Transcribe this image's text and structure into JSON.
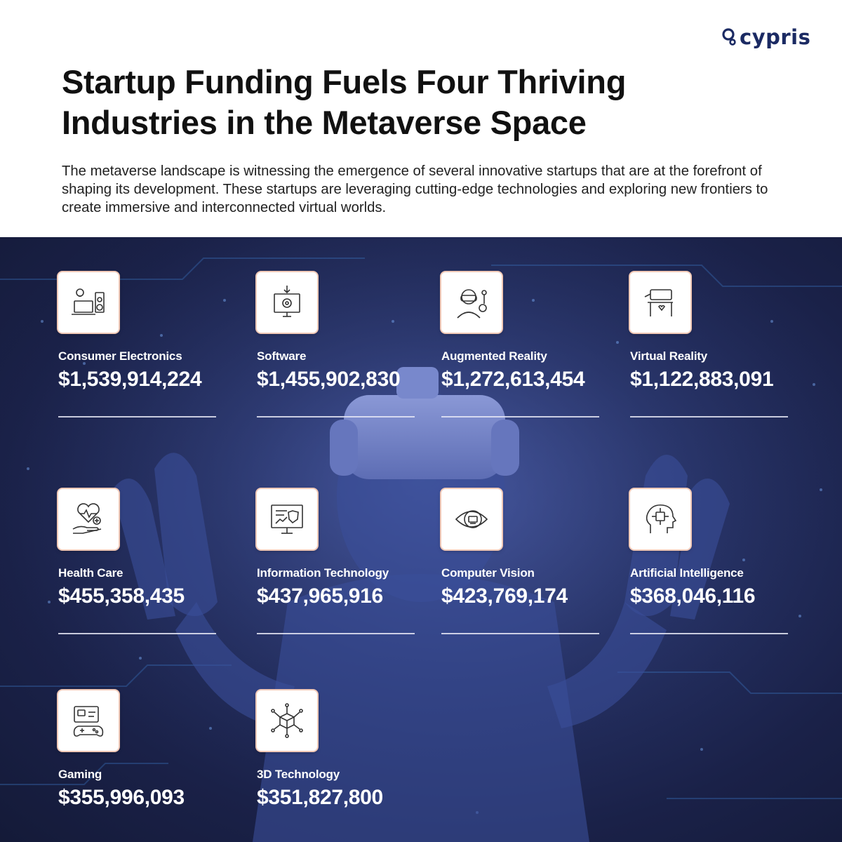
{
  "brand": {
    "name": "cypris",
    "logo_icon": "cypris-logo-icon",
    "color": "#1b2a63"
  },
  "title": "Startup Funding Fuels Four Thriving Industries in the Metaverse Space",
  "intro": "The metaverse landscape is witnessing the emergence of several innovative startups that are at the forefront of shaping its development. These startups are leveraging cutting-edge technologies and exploring new frontiers to create immersive and interconnected virtual worlds.",
  "industries": [
    {
      "name": "Consumer Electronics",
      "amount": "$1,539,914,224",
      "icon": "consumer-electronics-icon"
    },
    {
      "name": "Software",
      "amount": "$1,455,902,830",
      "icon": "software-icon"
    },
    {
      "name": "Augmented Reality",
      "amount": "$1,272,613,454",
      "icon": "augmented-reality-icon"
    },
    {
      "name": "Virtual Reality",
      "amount": "$1,122,883,091",
      "icon": "virtual-reality-icon"
    },
    {
      "name": "Health Care",
      "amount": "$455,358,435",
      "icon": "health-care-icon"
    },
    {
      "name": "Information Technology",
      "amount": "$437,965,916",
      "icon": "information-technology-icon"
    },
    {
      "name": "Computer Vision",
      "amount": "$423,769,174",
      "icon": "computer-vision-icon"
    },
    {
      "name": "Artificial Intelligence",
      "amount": "$368,046,116",
      "icon": "artificial-intelligence-icon"
    },
    {
      "name": "Gaming",
      "amount": "$355,996,093",
      "icon": "gaming-icon"
    },
    {
      "name": "3D Technology",
      "amount": "$351,827,800",
      "icon": "3d-technology-icon"
    }
  ],
  "colors": {
    "background_dark": "#1a2148",
    "accent_border": "#f1c9b7",
    "text_light": "#ffffff"
  }
}
